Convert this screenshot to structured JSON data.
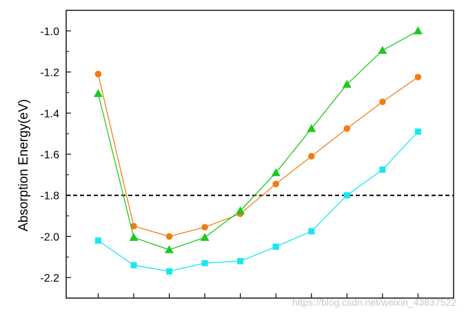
{
  "chart_data": {
    "type": "line",
    "title": "",
    "ylabel": "Absorption Energy(eV)",
    "xlabel": "",
    "x": [
      1,
      2,
      3,
      4,
      5,
      6,
      7,
      8,
      9,
      10
    ],
    "xlim": [
      0.1,
      11.0
    ],
    "ylim": [
      -2.3,
      -0.9
    ],
    "yticks": [
      -2.2,
      -2.0,
      -1.8,
      -1.6,
      -1.4,
      -1.2,
      -1.0
    ],
    "ytick_labels": [
      "-2.2",
      "-2.0",
      "-1.8",
      "-1.6",
      "-1.4",
      "-1.2",
      "-1.0"
    ],
    "reference_line": {
      "y": -1.8,
      "style": "dashed",
      "color": "#000000"
    },
    "grid": false,
    "legend": "none",
    "series": [
      {
        "color": "#f07d14",
        "marker": "circle",
        "values": [
          -1.21,
          -1.95,
          -2.0,
          -1.955,
          -1.89,
          -1.745,
          -1.61,
          -1.475,
          -1.345,
          -1.225
        ]
      },
      {
        "color": "#1ec81e",
        "marker": "triangle",
        "values": [
          -1.305,
          -2.005,
          -2.065,
          -2.005,
          -1.875,
          -1.69,
          -1.475,
          -1.26,
          -1.095,
          -1.0
        ]
      },
      {
        "color": "#19e6f0",
        "marker": "square",
        "values": [
          -2.02,
          -2.14,
          -2.17,
          -2.13,
          -2.12,
          -2.05,
          -1.975,
          -1.8,
          -1.675,
          -1.49
        ]
      }
    ]
  },
  "watermark": "https://blog.csdn.net/weixin_43837522"
}
